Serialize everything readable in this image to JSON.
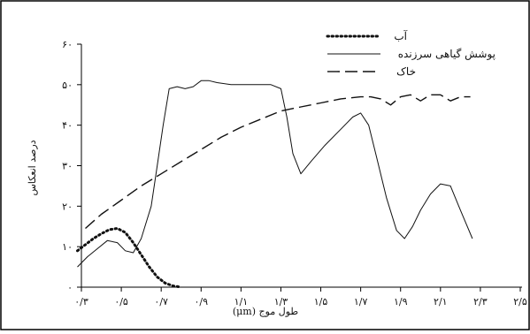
{
  "chart_data": {
    "type": "line",
    "title": "",
    "xlabel": "طول موج (μm)",
    "ylabel": "درصد انعکاس",
    "x_ticks": [
      "۰/۳",
      "۰/۵",
      "۰/۷",
      "۰/۹",
      "۱/۱",
      "۱/۳",
      "۱/۵",
      "۱/۷",
      "۱/۹",
      "۲/۱",
      "۲/۳",
      "۲/۵"
    ],
    "y_ticks": [
      "۰",
      "۱۰",
      "۲۰",
      "۳۰",
      "۴۰",
      "۵۰",
      "۶۰"
    ],
    "xlim": [
      0.3,
      2.5
    ],
    "ylim": [
      0,
      60
    ],
    "grid": false,
    "legend_position": "top-right",
    "series": [
      {
        "name": "آب",
        "style": "dotted",
        "x": [
          0.28,
          0.32,
          0.36,
          0.4,
          0.44,
          0.48,
          0.52,
          0.56,
          0.6,
          0.64,
          0.68,
          0.72,
          0.76,
          0.8
        ],
        "y": [
          9,
          10.5,
          12,
          13.2,
          14.2,
          14.5,
          13.5,
          11,
          8,
          5,
          2.5,
          1,
          0.3,
          0
        ]
      },
      {
        "name": "پوشش گیاهی سرزنده",
        "style": "solid",
        "x": [
          0.28,
          0.33,
          0.38,
          0.43,
          0.48,
          0.52,
          0.56,
          0.6,
          0.65,
          0.68,
          0.71,
          0.74,
          0.78,
          0.82,
          0.86,
          0.9,
          0.94,
          0.98,
          1.05,
          1.15,
          1.25,
          1.3,
          1.33,
          1.36,
          1.4,
          1.45,
          1.52,
          1.6,
          1.66,
          1.7,
          1.74,
          1.78,
          1.83,
          1.88,
          1.92,
          1.96,
          2.0,
          2.05,
          2.1,
          2.15,
          2.2,
          2.26
        ],
        "y": [
          5,
          7.5,
          9.5,
          11.5,
          11,
          9,
          8.5,
          12,
          20,
          30,
          40,
          49,
          49.5,
          49,
          49.5,
          51,
          51,
          50.5,
          50,
          50,
          50,
          49,
          42,
          33,
          28,
          31,
          35,
          39,
          42,
          43,
          40,
          32,
          22,
          14,
          12,
          15,
          19,
          23,
          25.5,
          25,
          19,
          12
        ]
      },
      {
        "name": "خاک",
        "style": "dashed",
        "x": [
          0.32,
          0.4,
          0.5,
          0.6,
          0.7,
          0.8,
          0.9,
          1.0,
          1.1,
          1.2,
          1.3,
          1.4,
          1.5,
          1.6,
          1.7,
          1.75,
          1.8,
          1.85,
          1.9,
          1.95,
          2.0,
          2.05,
          2.1,
          2.15,
          2.2,
          2.25
        ],
        "y": [
          14.5,
          18,
          21.5,
          25,
          28,
          31,
          34,
          37,
          39.5,
          41.5,
          43.5,
          44.5,
          45.5,
          46.5,
          47,
          47,
          46.5,
          45,
          47,
          47.5,
          46,
          47.5,
          47.5,
          46,
          47,
          47
        ]
      }
    ]
  }
}
